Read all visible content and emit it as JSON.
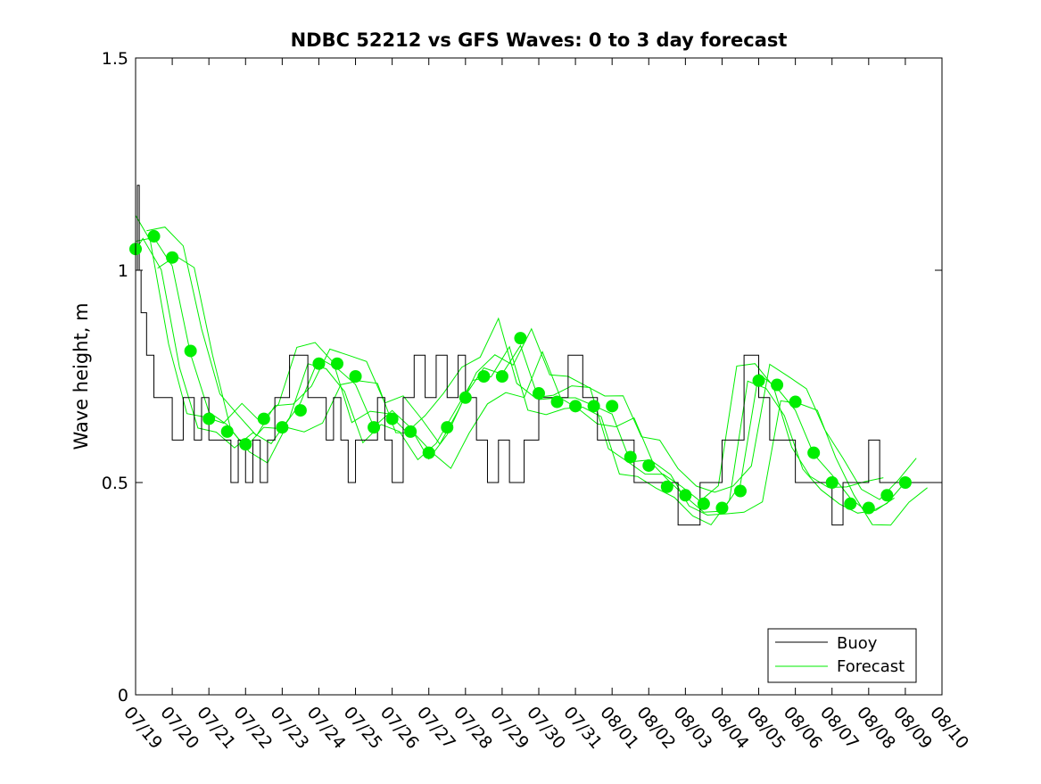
{
  "chart_data": {
    "type": "line",
    "title": "NDBC 52212 vs GFS Waves: 0 to 3 day forecast",
    "xlabel": "",
    "ylabel": "Wave height, m",
    "xlim": [
      "07/19",
      "08/10"
    ],
    "ylim": [
      0,
      1.5
    ],
    "x_tick_labels": [
      "07/19",
      "07/20",
      "07/21",
      "07/22",
      "07/23",
      "07/24",
      "07/25",
      "07/26",
      "07/27",
      "07/28",
      "07/29",
      "07/30",
      "07/31",
      "08/01",
      "08/02",
      "08/03",
      "08/04",
      "08/05",
      "08/06",
      "08/07",
      "08/08",
      "08/09",
      "08/10"
    ],
    "y_ticks": [
      0,
      0.5,
      1,
      1.5
    ],
    "y_tick_labels": [
      "0",
      "0.5",
      "1",
      "1.5"
    ],
    "grid": false,
    "legend": {
      "placement": "bottom-right",
      "entries": [
        "Buoy",
        "Forecast"
      ]
    },
    "colors": {
      "buoy": "#000000",
      "forecast": "#00ee00"
    },
    "series": [
      {
        "name": "Buoy",
        "x_day_offset": [
          0,
          0.05,
          0.1,
          0.15,
          0.2,
          0.3,
          0.5,
          0.7,
          1.0,
          1.3,
          1.6,
          1.8,
          2.0,
          2.3,
          2.6,
          2.8,
          3.0,
          3.2,
          3.4,
          3.6,
          3.8,
          4.0,
          4.2,
          4.5,
          4.7,
          5.0,
          5.2,
          5.4,
          5.6,
          5.8,
          6.0,
          6.3,
          6.6,
          6.8,
          7.0,
          7.3,
          7.6,
          7.9,
          8.2,
          8.5,
          8.8,
          9.0,
          9.3,
          9.6,
          9.9,
          10.2,
          10.6,
          11.0,
          11.4,
          11.8,
          12.2,
          12.6,
          13.0,
          13.3,
          13.6,
          14.0,
          14.4,
          14.8,
          15.1,
          15.4,
          15.7,
          16.0,
          16.3,
          16.6,
          17.0,
          17.3,
          17.6,
          18.0,
          18.3,
          18.6,
          19.0,
          19.3,
          19.6,
          20.0,
          20.3,
          20.6,
          21.0,
          21.3,
          21.6,
          22.0
        ],
        "values": [
          1.0,
          1.2,
          1.0,
          0.9,
          0.9,
          0.8,
          0.7,
          0.7,
          0.6,
          0.7,
          0.6,
          0.7,
          0.6,
          0.6,
          0.5,
          0.6,
          0.5,
          0.6,
          0.5,
          0.6,
          0.7,
          0.7,
          0.8,
          0.8,
          0.7,
          0.7,
          0.6,
          0.7,
          0.6,
          0.5,
          0.6,
          0.6,
          0.7,
          0.6,
          0.5,
          0.7,
          0.8,
          0.7,
          0.8,
          0.7,
          0.8,
          0.7,
          0.6,
          0.5,
          0.6,
          0.5,
          0.6,
          0.7,
          0.7,
          0.8,
          0.7,
          0.6,
          0.6,
          0.6,
          0.5,
          0.5,
          0.5,
          0.4,
          0.4,
          0.5,
          0.5,
          0.6,
          0.6,
          0.8,
          0.7,
          0.6,
          0.6,
          0.5,
          0.5,
          0.5,
          0.4,
          0.5,
          0.5,
          0.6,
          0.5,
          0.5,
          0.5,
          0.5,
          0.5,
          0.5
        ]
      },
      {
        "name": "Forecast",
        "x_day_offset": [
          0,
          0.5,
          1.0,
          1.5,
          2.0,
          2.5,
          3.0,
          3.5,
          4.0,
          4.5,
          5.0,
          5.5,
          6.0,
          6.5,
          7.0,
          7.5,
          8.0,
          8.5,
          9.0,
          9.5,
          10.0,
          10.5,
          11.0,
          11.5,
          12.0,
          12.5,
          13.0,
          13.5,
          14.0,
          14.5,
          15.0,
          15.5,
          16.0,
          16.5,
          17.0,
          17.5,
          18.0,
          18.5,
          19.0,
          19.5,
          20.0,
          20.5,
          21.0
        ],
        "values": [
          1.05,
          1.08,
          1.03,
          0.81,
          0.65,
          0.62,
          0.59,
          0.65,
          0.63,
          0.67,
          0.78,
          0.78,
          0.75,
          0.63,
          0.65,
          0.62,
          0.57,
          0.63,
          0.7,
          0.75,
          0.75,
          0.84,
          0.71,
          0.69,
          0.68,
          0.68,
          0.68,
          0.56,
          0.54,
          0.49,
          0.47,
          0.45,
          0.44,
          0.48,
          0.74,
          0.73,
          0.69,
          0.57,
          0.5,
          0.45,
          0.44,
          0.47,
          0.5
        ]
      }
    ]
  }
}
